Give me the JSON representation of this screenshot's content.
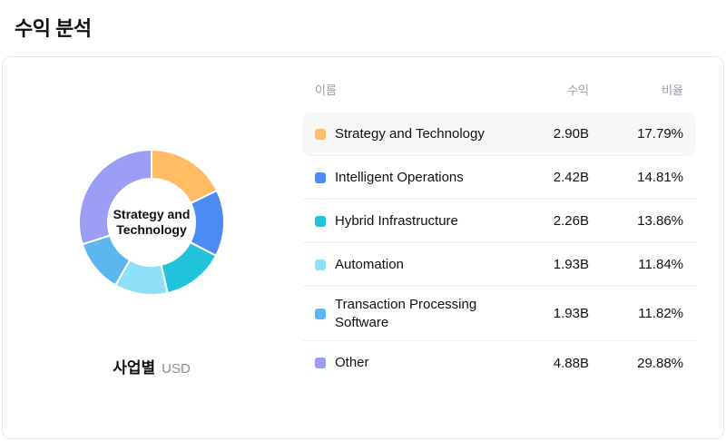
{
  "title": "수익 분석",
  "chart": {
    "center_label": "Strategy and Technology",
    "caption": "사업별",
    "caption_unit": "USD"
  },
  "chart_data": {
    "type": "pie",
    "donut": true,
    "title": "수익 분석",
    "unit": "USD",
    "start_angle_deg": -90,
    "clockwise": true,
    "categories": [
      "Strategy and Technology",
      "Intelligent Operations",
      "Hybrid Infrastructure",
      "Automation",
      "Transaction Processing Software",
      "Other"
    ],
    "revenue_labels": [
      "2.90B",
      "2.42B",
      "2.26B",
      "1.93B",
      "1.93B",
      "4.88B"
    ],
    "values_percent": [
      17.79,
      14.81,
      13.86,
      11.84,
      11.82,
      29.88
    ],
    "colors": [
      "#ffbd66",
      "#4a8cf4",
      "#21c3db",
      "#8ee0f8",
      "#5cb7f1",
      "#9c9ef6"
    ]
  },
  "table": {
    "headers": {
      "name": "이름",
      "revenue": "수익",
      "ratio": "비율"
    },
    "rows": [
      {
        "name": "Strategy and Technology",
        "revenue": "2.90B",
        "ratio": "17.79%",
        "color": "#ffbd66",
        "highlighted": true
      },
      {
        "name": "Intelligent Operations",
        "revenue": "2.42B",
        "ratio": "14.81%",
        "color": "#4a8cf4",
        "highlighted": false
      },
      {
        "name": "Hybrid Infrastructure",
        "revenue": "2.26B",
        "ratio": "13.86%",
        "color": "#21c3db",
        "highlighted": false
      },
      {
        "name": "Automation",
        "revenue": "1.93B",
        "ratio": "11.84%",
        "color": "#8ee0f8",
        "highlighted": false
      },
      {
        "name": "Transaction Processing Software",
        "revenue": "1.93B",
        "ratio": "11.82%",
        "color": "#5cb7f1",
        "highlighted": false
      },
      {
        "name": "Other",
        "revenue": "4.88B",
        "ratio": "29.88%",
        "color": "#9c9ef6",
        "highlighted": false
      }
    ]
  }
}
